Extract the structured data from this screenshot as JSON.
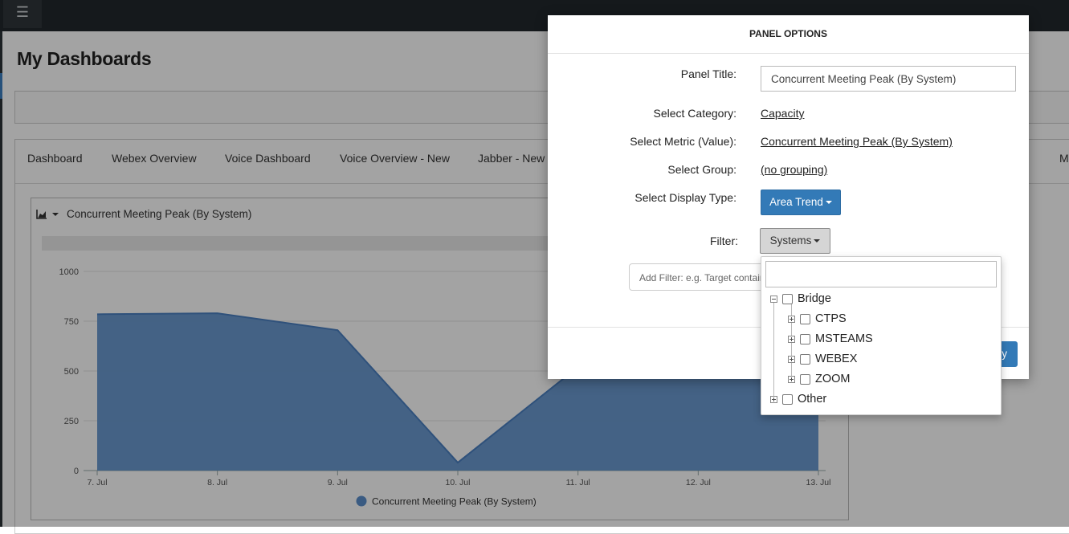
{
  "app": {
    "title": "My Dashboards"
  },
  "tabs": [
    "Dashboard",
    "Webex Overview",
    "Voice Dashboard",
    "Voice Overview - New",
    "Jabber - New",
    "Ms"
  ],
  "panel": {
    "title": "Concurrent Meeting Peak (By System)"
  },
  "modal": {
    "title": "PANEL OPTIONS",
    "labels": {
      "panel_title": "Panel Title:",
      "category": "Select Category:",
      "metric": "Select Metric (Value):",
      "group": "Select Group:",
      "display_type": "Select Display Type:",
      "filter": "Filter:"
    },
    "panel_title_value": "Concurrent Meeting Peak (By System)",
    "category_value": "Capacity",
    "metric_value": "Concurrent Meeting Peak (By System)",
    "group_value": "(no grouping)",
    "display_type_value": "Area Trend",
    "filter_button": "Systems",
    "add_filter_placeholder": "Add Filter: e.g. Target contains",
    "save_label": "y"
  },
  "filter_tree": [
    {
      "label": "Bridge",
      "expanded": true,
      "children": [
        {
          "label": "CTPS"
        },
        {
          "label": "MSTEAMS"
        },
        {
          "label": "WEBEX"
        },
        {
          "label": "ZOOM"
        }
      ]
    },
    {
      "label": "Other",
      "expanded": false
    }
  ],
  "chart_data": {
    "type": "area",
    "title": "Concurrent Meeting Peak (By System)",
    "categories": [
      "7. Jul",
      "8. Jul",
      "9. Jul",
      "10. Jul",
      "11. Jul",
      "12. Jul",
      "13. Jul"
    ],
    "series": [
      {
        "name": "Concurrent Meeting Peak (By System)",
        "values": [
          785,
          790,
          705,
          40,
          520,
          700,
          780
        ]
      }
    ],
    "ylim": [
      0,
      1000
    ],
    "yticks": [
      0,
      250,
      500,
      750,
      1000
    ],
    "color": "#5b8fcb",
    "legend": "bottom-center"
  }
}
